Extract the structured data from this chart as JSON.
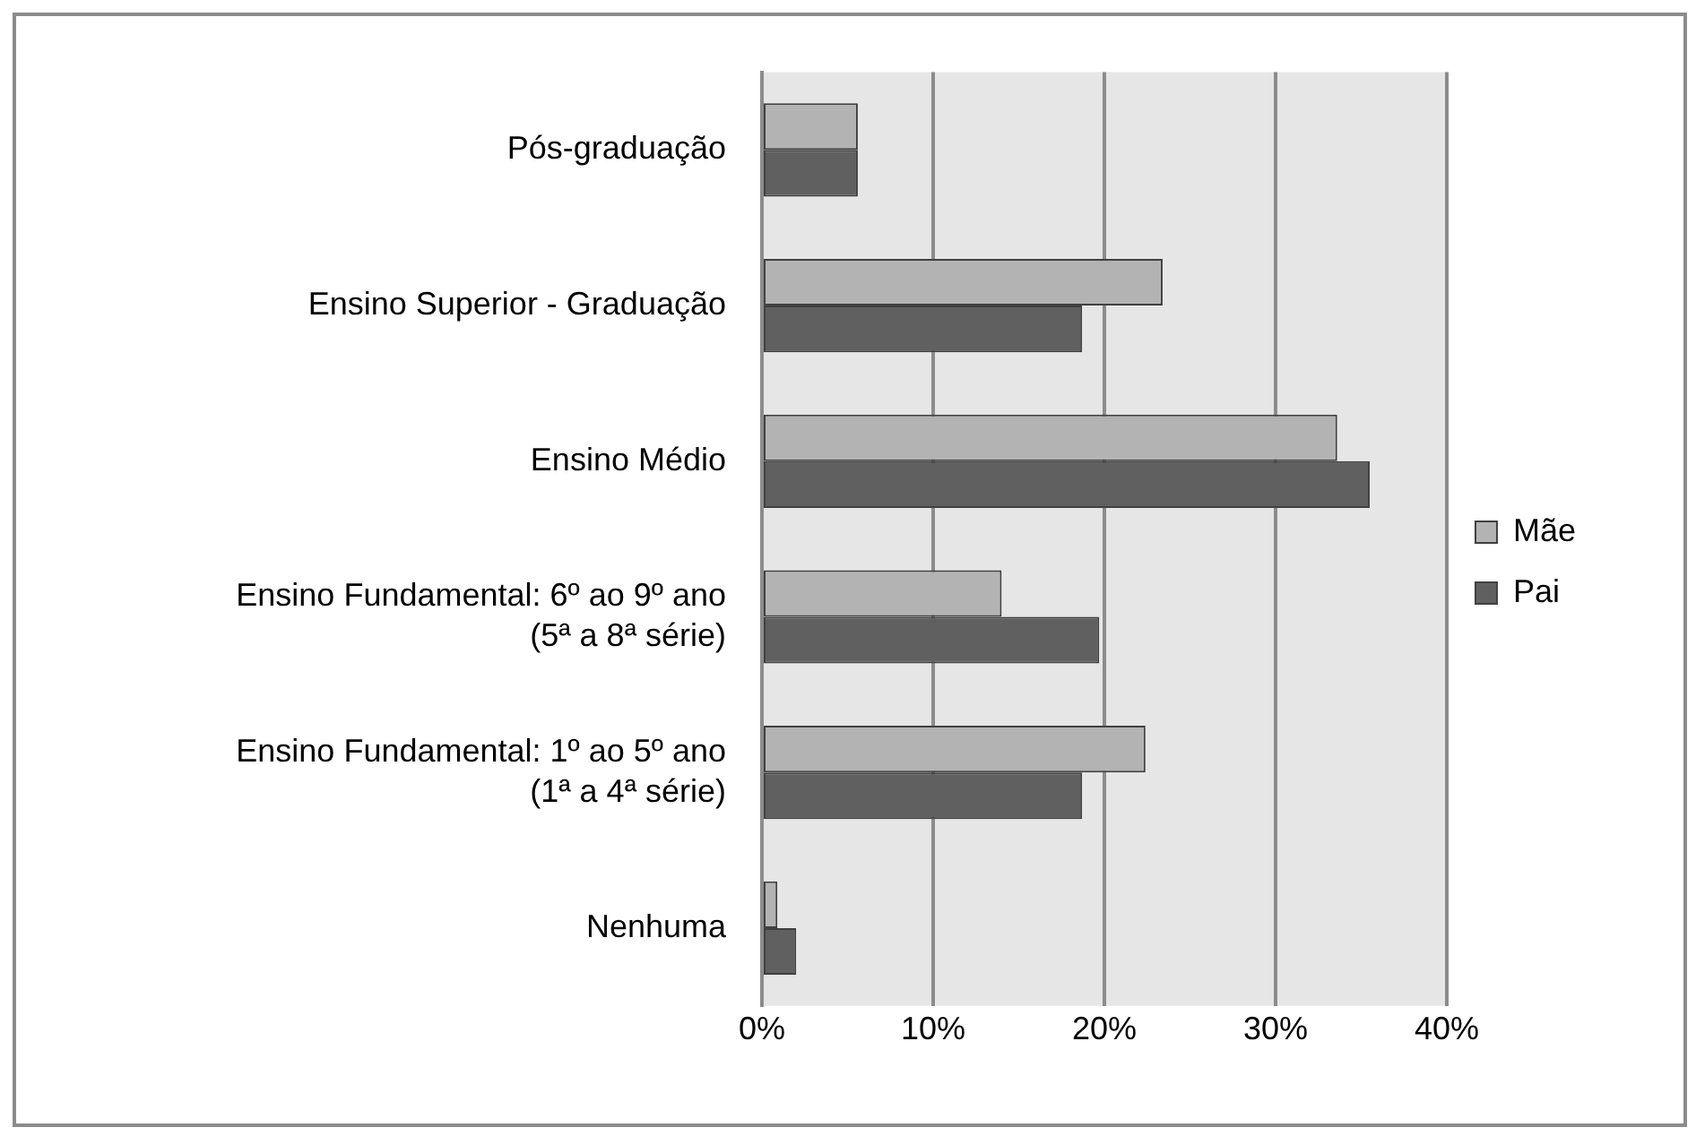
{
  "chart_data": {
    "type": "bar",
    "orientation": "horizontal",
    "categories": [
      "Pós-graduação",
      "Ensino Superior - Graduação",
      "Ensino Médio",
      "Ensino Fundamental: 6º ao 9º ano\n(5ª a 8ª série)",
      "Ensino Fundamental: 1º ao 5º ano\n(1ª a 4ª série)",
      "Nenhuma"
    ],
    "series": [
      {
        "name": "Mãe",
        "color": "#b3b3b3",
        "values": [
          5.6,
          23.4,
          33.6,
          14.0,
          22.4,
          0.9
        ]
      },
      {
        "name": "Pai",
        "color": "#606060",
        "values": [
          5.6,
          18.7,
          35.5,
          19.7,
          18.7,
          2.0
        ]
      }
    ],
    "xlim": [
      0,
      40
    ],
    "xticks": [
      {
        "value": 0,
        "label": "0%"
      },
      {
        "value": 10,
        "label": "10%"
      },
      {
        "value": 20,
        "label": "20%"
      },
      {
        "value": 30,
        "label": "30%"
      },
      {
        "value": 40,
        "label": "40%"
      }
    ],
    "grid": "x",
    "legend": "right"
  }
}
